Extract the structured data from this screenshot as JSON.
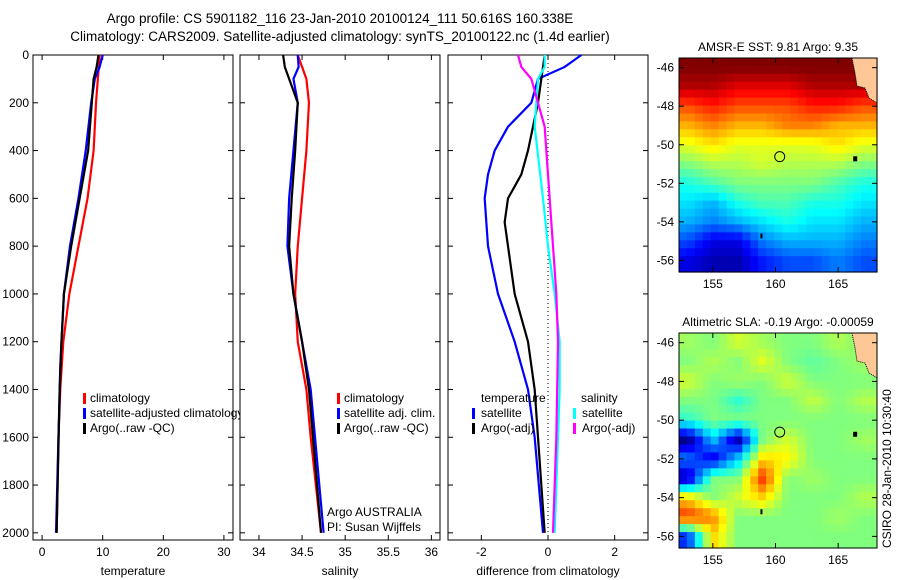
{
  "title_line1": "Argo profile: CS 5901182_116 23-Jan-2010 20100124_111 50.616S 160.338E",
  "title_line2": "Climatology: CARS2009. Satellite-adjusted climatology: synTS_20100122.nc (1.4d earlier)",
  "credit_line1": "Argo AUSTRALIA",
  "credit_line2": "PI: Susan Wijffels",
  "timestamp": "CSIRO 28-Jan-2010 10:30:40",
  "colors": {
    "climatology": "#ff0000",
    "satellite": "#0000ff",
    "argo": "#000000",
    "sal_satellite": "#00ffff",
    "sal_argo": "#ff00ff"
  },
  "chart_data": [
    {
      "type": "line",
      "xlabel": "temperature",
      "ylabel": "",
      "xlim": [
        -1.5,
        31.5
      ],
      "ylim": [
        2030,
        0
      ],
      "xticks": [
        0,
        10,
        20,
        30
      ],
      "yticks": [
        0,
        200,
        400,
        600,
        800,
        1000,
        1200,
        1400,
        1600,
        1800,
        2000
      ],
      "legend": [
        "climatology",
        "satellite-adjusted climatology",
        "Argo(..raw -QC)"
      ],
      "series": [
        {
          "name": "climatology",
          "color": "#ff0000",
          "depth": [
            0,
            100,
            200,
            400,
            600,
            800,
            1000,
            1200,
            1400,
            1600,
            2000
          ],
          "values": [
            9.5,
            9.2,
            8.9,
            8.5,
            7.5,
            6.0,
            4.5,
            3.5,
            3.0,
            2.7,
            2.4
          ]
        },
        {
          "name": "satellite-adjusted climatology",
          "color": "#0000ff",
          "depth": [
            0,
            50,
            100,
            200,
            400,
            600,
            800,
            1000,
            1300,
            2000
          ],
          "values": [
            10.0,
            9.5,
            8.7,
            8.1,
            7.2,
            6.0,
            4.6,
            3.6,
            3.0,
            2.3
          ]
        },
        {
          "name": "Argo(..raw -QC)",
          "color": "#000000",
          "depth": [
            0,
            50,
            100,
            200,
            400,
            600,
            800,
            1000,
            1200,
            1400,
            2000
          ],
          "values": [
            9.3,
            9.0,
            8.5,
            8.2,
            7.6,
            6.2,
            4.8,
            3.6,
            3.2,
            2.9,
            2.4
          ]
        }
      ]
    },
    {
      "type": "line",
      "xlabel": "salinity",
      "xlim": [
        33.78,
        36.1
      ],
      "ylim": [
        2030,
        0
      ],
      "xticks": [
        34,
        34.5,
        35,
        35.5,
        36
      ],
      "xticklabels": [
        "34",
        "34.5",
        "35",
        "35.5",
        "36"
      ],
      "legend": [
        "climatology",
        "satellite adj. clim.",
        "Argo(..raw -QC)"
      ],
      "series": [
        {
          "name": "climatology",
          "color": "#ff0000",
          "depth": [
            0,
            100,
            200,
            400,
            600,
            800,
            1000,
            1200,
            1400,
            1600,
            2000
          ],
          "values": [
            34.45,
            34.55,
            34.58,
            34.55,
            34.5,
            34.45,
            34.42,
            34.45,
            34.55,
            34.6,
            34.72
          ]
        },
        {
          "name": "satellite adj. clim.",
          "color": "#0000ff",
          "depth": [
            0,
            50,
            100,
            200,
            400,
            600,
            800,
            1000,
            1200,
            1400,
            1600,
            2000
          ],
          "values": [
            34.45,
            34.46,
            34.4,
            34.45,
            34.4,
            34.35,
            34.33,
            34.4,
            34.5,
            34.6,
            34.65,
            34.75
          ]
        },
        {
          "name": "Argo(..raw -QC)",
          "color": "#000000",
          "depth": [
            0,
            50,
            100,
            200,
            400,
            600,
            800,
            1000,
            1200,
            1400,
            2000
          ],
          "values": [
            34.28,
            34.3,
            34.35,
            34.45,
            34.42,
            34.38,
            34.35,
            34.4,
            34.5,
            34.58,
            34.72
          ]
        }
      ]
    },
    {
      "type": "line",
      "xlabel": "difference from climatology",
      "xlim": [
        -3,
        3
      ],
      "ylim": [
        2030,
        0
      ],
      "xticks": [
        -2,
        0,
        2
      ],
      "legend_temperature_title": "temperature",
      "legend_salinity_title": "salinity",
      "series": [
        {
          "name": "satellite",
          "group": "temperature",
          "color": "#0000ff",
          "depth": [
            0,
            50,
            100,
            200,
            300,
            400,
            500,
            600,
            800,
            1000,
            1200,
            1400,
            1600,
            2000
          ],
          "values": [
            1.0,
            0.5,
            -0.3,
            -0.5,
            -1.2,
            -1.6,
            -1.8,
            -1.9,
            -1.8,
            -1.5,
            -1.0,
            -0.6,
            -0.4,
            -0.15
          ]
        },
        {
          "name": "Argo(-adj)",
          "group": "temperature",
          "color": "#000000",
          "depth": [
            0,
            100,
            200,
            400,
            500,
            600,
            700,
            800,
            1000,
            1200,
            1400,
            2000
          ],
          "values": [
            -0.1,
            -0.2,
            -0.3,
            -0.6,
            -0.8,
            -1.2,
            -1.3,
            -1.2,
            -1.0,
            -0.6,
            -0.4,
            -0.1
          ]
        },
        {
          "name": "satellite",
          "group": "salinity",
          "color": "#00ffff",
          "depth": [
            0,
            50,
            100,
            300,
            600,
            800,
            1000,
            1200,
            1400,
            2000
          ],
          "values": [
            -0.1,
            -0.1,
            -0.3,
            -0.4,
            -0.15,
            0.0,
            0.2,
            0.35,
            0.35,
            0.2
          ]
        },
        {
          "name": "Argo(-adj)",
          "group": "salinity",
          "color": "#ff00ff",
          "depth": [
            0,
            50,
            100,
            300,
            700,
            800,
            1000,
            1200,
            1600,
            2000
          ],
          "values": [
            -0.9,
            -0.8,
            -0.5,
            -0.1,
            0.1,
            0.15,
            0.25,
            0.3,
            0.25,
            0.15
          ]
        }
      ]
    },
    {
      "type": "heatmap",
      "title": "AMSR-E SST: 9.81 Argo: 9.35",
      "xlim": [
        152.3,
        168.1
      ],
      "ylim": [
        -56.6,
        -45.5
      ],
      "xticks": [
        155,
        160,
        165
      ],
      "yticks": [
        -46,
        -48,
        -50,
        -52,
        -54,
        -56
      ],
      "clim": [
        4,
        14
      ],
      "lon": [
        153,
        155,
        157,
        159,
        161,
        163,
        165,
        167
      ],
      "lat": [
        -46,
        -47,
        -48,
        -49,
        -50,
        -51,
        -52,
        -53,
        -54,
        -55,
        -56
      ],
      "values": [
        [
          14,
          14,
          14,
          14,
          14,
          14,
          14,
          14
        ],
        [
          13.5,
          13.5,
          13,
          13,
          13,
          13.5,
          13.5,
          13.5
        ],
        [
          12,
          12.5,
          12,
          12,
          12,
          12.5,
          12.5,
          12
        ],
        [
          11,
          11.5,
          11,
          11,
          11.5,
          11.5,
          11,
          11
        ],
        [
          10,
          10.5,
          10,
          10,
          10,
          10,
          10.5,
          10
        ],
        [
          9,
          9.5,
          9.5,
          9.8,
          9.5,
          9.5,
          9.5,
          9
        ],
        [
          8,
          8.5,
          9,
          9,
          9,
          9,
          8.5,
          8
        ],
        [
          7.5,
          7,
          8,
          8.5,
          8.5,
          8,
          8,
          7.5
        ],
        [
          7,
          6.5,
          7,
          7.5,
          8,
          7.5,
          7.5,
          7
        ],
        [
          6,
          5,
          5,
          6.5,
          7,
          7,
          7,
          6.5
        ],
        [
          5,
          4.5,
          4.5,
          5.5,
          6,
          6,
          6.5,
          6
        ]
      ],
      "argo_position": [
        160.338,
        -50.616
      ]
    },
    {
      "type": "heatmap",
      "title": "Altimetric SLA: -0.19 Argo: -0.00059",
      "xlim": [
        152.3,
        168.1
      ],
      "ylim": [
        -56.6,
        -45.5
      ],
      "xticks": [
        155,
        160,
        165
      ],
      "yticks": [
        -46,
        -48,
        -50,
        -52,
        -54,
        -56
      ],
      "clim": [
        -0.3,
        0.3
      ],
      "lon": [
        153,
        155,
        157,
        159,
        161,
        163,
        165,
        167
      ],
      "lat": [
        -46,
        -47,
        -48,
        -49,
        -50,
        -51,
        -52,
        -53,
        -54,
        -55,
        -56
      ],
      "values": [
        [
          0.02,
          0.0,
          0.05,
          0.02,
          0.0,
          0.0,
          0.03,
          0.0
        ],
        [
          0.0,
          0.03,
          0.0,
          0.06,
          0.0,
          -0.02,
          0.0,
          0.02
        ],
        [
          0.05,
          0.0,
          0.02,
          0.0,
          0.05,
          0.0,
          0.0,
          0.0
        ],
        [
          0.0,
          0.0,
          -0.05,
          0.0,
          0.0,
          0.04,
          0.0,
          0.03
        ],
        [
          -0.05,
          0.0,
          0.0,
          0.0,
          0.0,
          0.0,
          0.0,
          0.0
        ],
        [
          -0.3,
          -0.1,
          -0.28,
          0.0,
          0.05,
          0.0,
          0.0,
          0.02
        ],
        [
          -0.15,
          -0.25,
          -0.1,
          0.1,
          0.08,
          0.0,
          0.0,
          0.0
        ],
        [
          -0.28,
          0.0,
          0.0,
          0.2,
          0.0,
          0.02,
          0.0,
          0.0
        ],
        [
          0.1,
          0.0,
          0.05,
          0.1,
          0.0,
          0.0,
          0.0,
          0.03
        ],
        [
          0.2,
          0.15,
          0.0,
          0.0,
          0.0,
          0.0,
          0.02,
          0.0
        ],
        [
          -0.2,
          0.1,
          0.0,
          0.0,
          0.0,
          0.0,
          0.0,
          0.0
        ]
      ],
      "argo_position": [
        160.338,
        -50.616
      ]
    }
  ]
}
